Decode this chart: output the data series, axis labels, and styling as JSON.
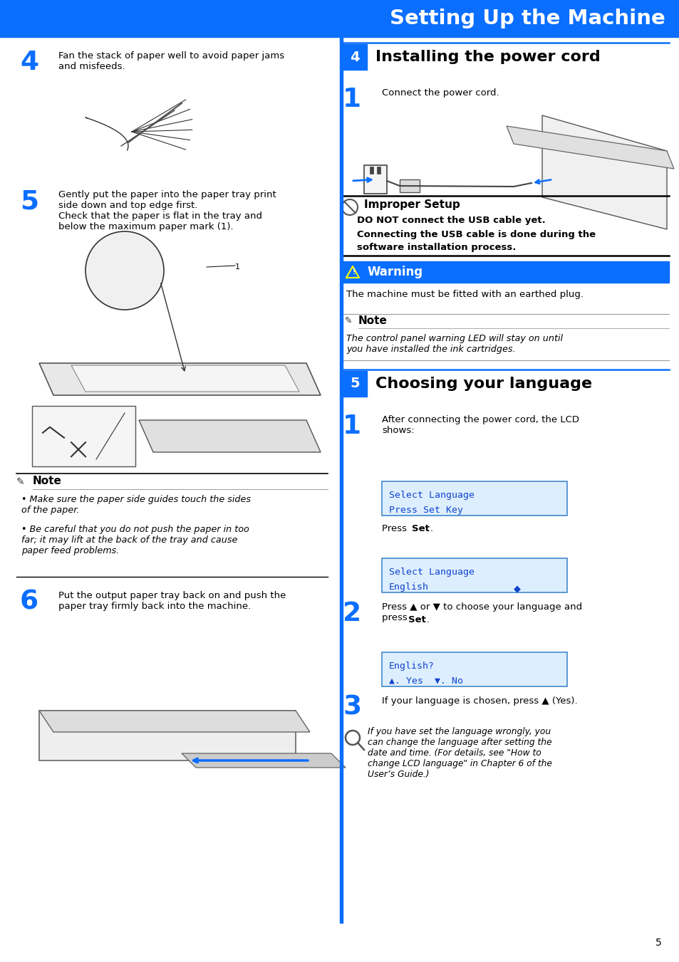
{
  "title": "Setting Up the Machine",
  "title_bg": "#0A6EFF",
  "title_color": "#ffffff",
  "page_bg": "#ffffff",
  "blue_color": "#0A6EFF",
  "step_num_bg": "#0A6EFF",
  "step_num_color": "#ffffff",
  "lcd_bg": "#ddeeff",
  "lcd_border": "#4488cc",
  "lcd_text_color": "#1144cc",
  "warning_bg": "#0A6EFF",
  "warning_text_color": "#ffffff",
  "left_step4_text": "Fan the stack of paper well to avoid paper jams\nand misfeeds.",
  "left_step5_text": "Gently put the paper into the paper tray print\nside down and top edge first.\nCheck that the paper is flat in the tray and\nbelow the maximum paper mark (1).",
  "left_step6_text": "Put the output paper tray back on and push the\npaper tray firmly back into the machine.",
  "left_note_bullet1": "Make sure the paper side guides touch the sides\nof the paper.",
  "left_note_bullet2": "Be careful that you do not push the paper in too\nfar; it may lift at the back of the tray and cause\npaper feed problems.",
  "step4_header": "Installing the power cord",
  "step5_header": "Choosing your language",
  "right_step1_text": "Connect the power cord.",
  "improper_setup_header": "Improper Setup",
  "improper_setup_body1": "DO NOT connect the USB cable yet.",
  "improper_setup_body2": "Connecting the USB cable is done during the",
  "improper_setup_body3": "software installation process.",
  "warning_body": "The machine must be fitted with an earthed plug.",
  "note_body_right": "The control panel warning LED will stay on until\nyou have installed the ink cartridges.",
  "right_step1b_text": "After connecting the power cord, the LCD\nshows:",
  "press_set_text": "Press Set.",
  "right_step2_text": "Press ▲ or ▼ to choose your language and\npress Set.",
  "right_step3_text": "If your language is chosen, press ▲ (Yes).",
  "tip_text": "If you have set the language wrongly, you\ncan change the language after setting the\ndate and time. (For details, see \"How to\nchange LCD language\" in Chapter 6 of the\nUser’s Guide.)",
  "lcd1_line1": "Select Language",
  "lcd1_line2": "Press Set Key",
  "lcd2_line1": "Select Language",
  "lcd2_line2": "English",
  "lcd3_line1": "English?",
  "lcd3_line2": "▲. Yes  ▼. No",
  "page_number": "5"
}
